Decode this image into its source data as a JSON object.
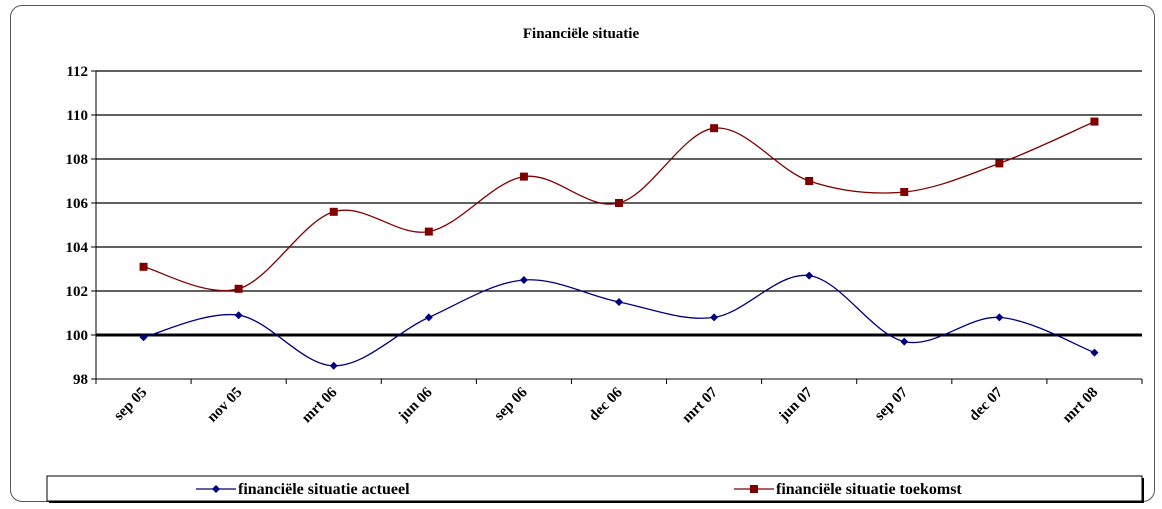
{
  "chart_data": {
    "type": "line",
    "title": "Financiële situatie",
    "xlabel": "",
    "ylabel": "",
    "categories": [
      "sep 05",
      "nov 05",
      "mrt 06",
      "jun 06",
      "sep 06",
      "dec 06",
      "mrt 07",
      "jun 07",
      "sep 07",
      "dec 07",
      "mrt 08"
    ],
    "ylim": [
      98,
      112
    ],
    "yticks": [
      98,
      100,
      102,
      104,
      106,
      108,
      110,
      112
    ],
    "grid": true,
    "baseline_emphasis": 100,
    "legend_position": "bottom",
    "series": [
      {
        "name": "financiële situatie actueel",
        "color": "#000080",
        "marker": "diamond",
        "values": [
          99.9,
          100.9,
          98.6,
          100.8,
          102.5,
          101.5,
          100.8,
          102.7,
          99.7,
          100.8,
          99.2
        ]
      },
      {
        "name": "financiële situatie toekomst",
        "color": "#800000",
        "marker": "square",
        "values": [
          103.1,
          102.1,
          105.6,
          104.7,
          107.2,
          106.0,
          109.4,
          107.0,
          106.5,
          107.8,
          109.7
        ]
      }
    ]
  }
}
